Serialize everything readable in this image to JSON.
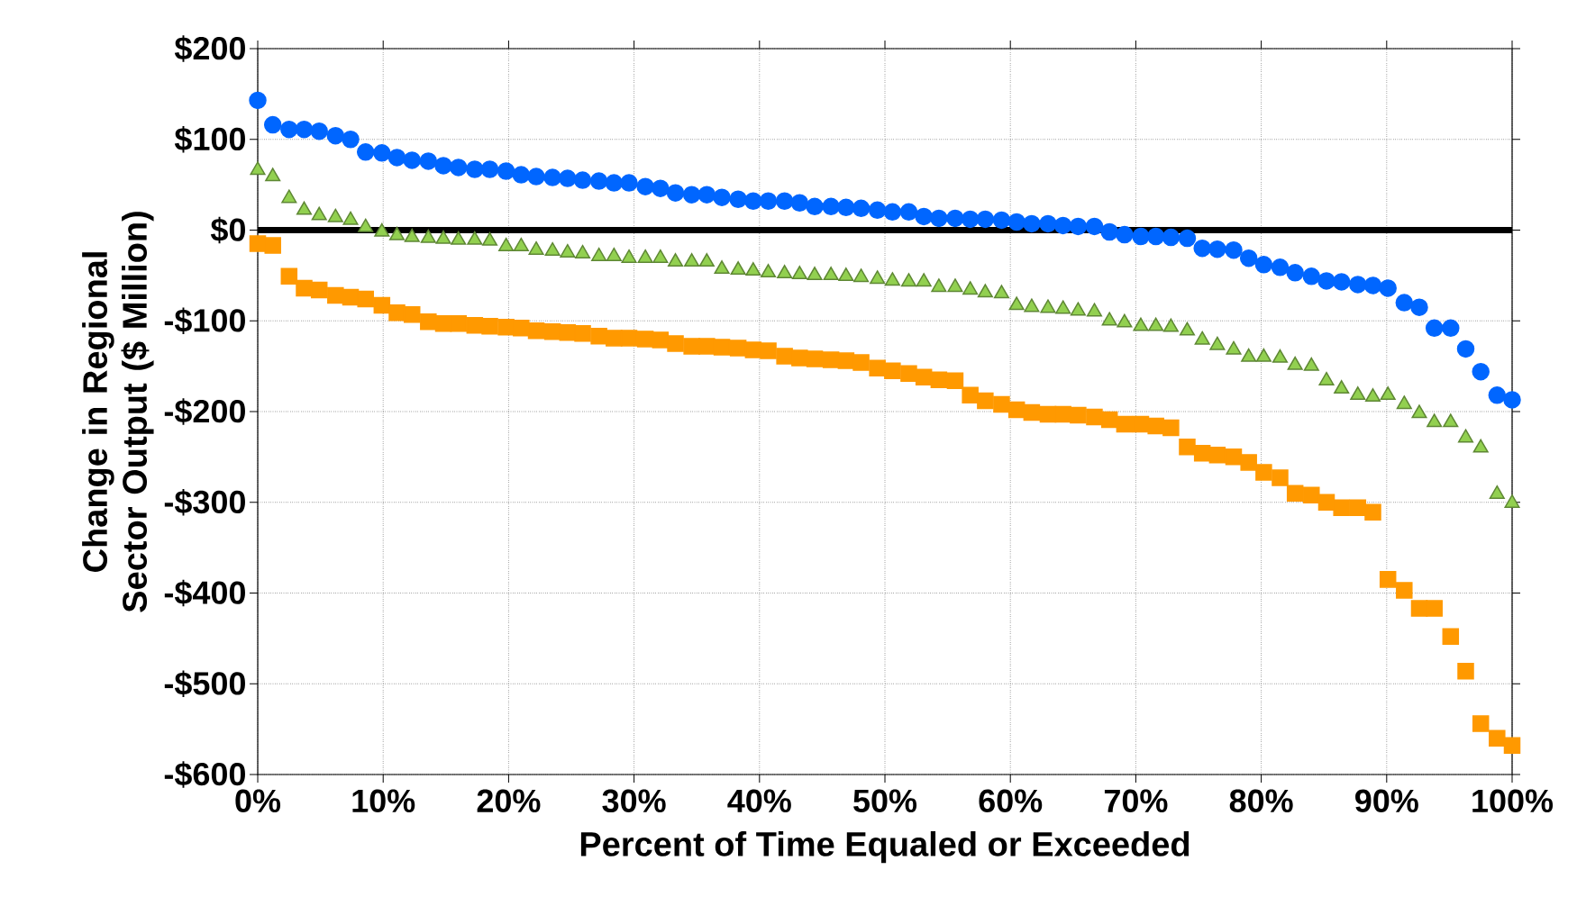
{
  "chart_data": {
    "type": "scatter",
    "xlabel": "Percent of Time Equaled or Exceeded",
    "ylabel": "Change in Regional Sector Output ($ Million)",
    "x": [
      0,
      1.2,
      2.5,
      3.7,
      4.9,
      6.2,
      7.4,
      8.6,
      9.9,
      11.1,
      12.3,
      13.6,
      14.8,
      16.0,
      17.3,
      18.5,
      19.8,
      21.0,
      22.2,
      23.5,
      24.7,
      25.9,
      27.2,
      28.4,
      29.6,
      30.9,
      32.1,
      33.3,
      34.6,
      35.8,
      37.0,
      38.3,
      39.5,
      40.7,
      42.0,
      43.2,
      44.4,
      45.7,
      46.9,
      48.1,
      49.4,
      50.6,
      51.9,
      53.1,
      54.3,
      55.6,
      56.8,
      58.0,
      59.3,
      60.5,
      61.7,
      63.0,
      64.2,
      65.4,
      66.7,
      67.9,
      69.1,
      70.4,
      71.6,
      72.8,
      74.1,
      75.3,
      76.5,
      77.8,
      79.0,
      80.2,
      81.5,
      82.7,
      84.0,
      85.2,
      86.4,
      87.7,
      88.9,
      90.1,
      91.4,
      92.6,
      93.8,
      95.1,
      96.3,
      97.5,
      98.8,
      100
    ],
    "series": [
      {
        "color": "#0066ff",
        "marker": "circle",
        "values": [
          143,
          116,
          111,
          111,
          109,
          104,
          100,
          86,
          85,
          80,
          77,
          76,
          71,
          69,
          67,
          67,
          65,
          61,
          59,
          58,
          57,
          55,
          54,
          52,
          52,
          48,
          46,
          41,
          39,
          39,
          36,
          34,
          32,
          32,
          32,
          30,
          26,
          26,
          25,
          24,
          22,
          20,
          20,
          15,
          13,
          13,
          12,
          12,
          11,
          9,
          7,
          7,
          5,
          4,
          4,
          -2,
          -5,
          -7,
          -7,
          -8,
          -9,
          -20,
          -21,
          -22,
          -31,
          -38,
          -41,
          -47,
          -51,
          -56,
          -57,
          -60,
          -61,
          -64,
          -80,
          -85,
          -108,
          -108,
          -131,
          -156,
          -182,
          -187
        ]
      },
      {
        "color": "#92d050",
        "marker": "triangle",
        "values": [
          66,
          59,
          35,
          22,
          16,
          14,
          11,
          3,
          -2,
          -6,
          -8,
          -9,
          -10,
          -11,
          -11,
          -12,
          -18,
          -18,
          -22,
          -23,
          -25,
          -26,
          -29,
          -29,
          -31,
          -31,
          -31,
          -35,
          -35,
          -35,
          -43,
          -44,
          -45,
          -47,
          -48,
          -49,
          -50,
          -50,
          -51,
          -52,
          -54,
          -56,
          -57,
          -57,
          -63,
          -63,
          -66,
          -69,
          -70,
          -83,
          -85,
          -86,
          -87,
          -89,
          -90,
          -100,
          -102,
          -106,
          -106,
          -107,
          -111,
          -121,
          -127,
          -132,
          -140,
          -140,
          -141,
          -149,
          -150,
          -166,
          -175,
          -182,
          -184,
          -182,
          -192,
          -202,
          -212,
          -212,
          -229,
          -240,
          -291,
          -301
        ]
      },
      {
        "color": "#ff9900",
        "marker": "square",
        "values": [
          -15,
          -17,
          -51,
          -64,
          -66,
          -72,
          -74,
          -76,
          -83,
          -91,
          -93,
          -101,
          -103,
          -103,
          -105,
          -106,
          -107,
          -108,
          -111,
          -112,
          -113,
          -114,
          -117,
          -119,
          -119,
          -120,
          -121,
          -125,
          -128,
          -128,
          -129,
          -130,
          -132,
          -133,
          -139,
          -141,
          -142,
          -143,
          -144,
          -146,
          -152,
          -155,
          -158,
          -162,
          -165,
          -166,
          -182,
          -188,
          -192,
          -198,
          -201,
          -203,
          -203,
          -204,
          -206,
          -209,
          -214,
          -214,
          -216,
          -218,
          -239,
          -246,
          -248,
          -250,
          -256,
          -267,
          -273,
          -290,
          -292,
          -300,
          -306,
          -306,
          -311,
          -385,
          -397,
          -417,
          -417,
          -448,
          -486,
          -544,
          -560,
          -568
        ]
      }
    ],
    "xlim": [
      0,
      100
    ],
    "xticks": [
      {
        "value": 0,
        "label": "0%"
      },
      {
        "value": 10,
        "label": "10%"
      },
      {
        "value": 20,
        "label": "20%"
      },
      {
        "value": 30,
        "label": "30%"
      },
      {
        "value": 40,
        "label": "40%"
      },
      {
        "value": 50,
        "label": "50%"
      },
      {
        "value": 60,
        "label": "60%"
      },
      {
        "value": 70,
        "label": "70%"
      },
      {
        "value": 80,
        "label": "80%"
      },
      {
        "value": 90,
        "label": "90%"
      },
      {
        "value": 100,
        "label": "100%"
      }
    ],
    "ylim": [
      -600,
      200
    ],
    "yticks": [
      {
        "value": -600,
        "label": "-$600"
      },
      {
        "value": -500,
        "label": "-$500"
      },
      {
        "value": -400,
        "label": "-$400"
      },
      {
        "value": -300,
        "label": "-$300"
      },
      {
        "value": -200,
        "label": "-$200"
      },
      {
        "value": -100,
        "label": "-$100"
      },
      {
        "value": 0,
        "label": "$0"
      },
      {
        "value": 100,
        "label": "$100"
      },
      {
        "value": 200,
        "label": "$200"
      }
    ],
    "ref_lines": [
      {
        "axis": "y",
        "value": 0,
        "color": "#000000"
      }
    ],
    "grid": true
  }
}
